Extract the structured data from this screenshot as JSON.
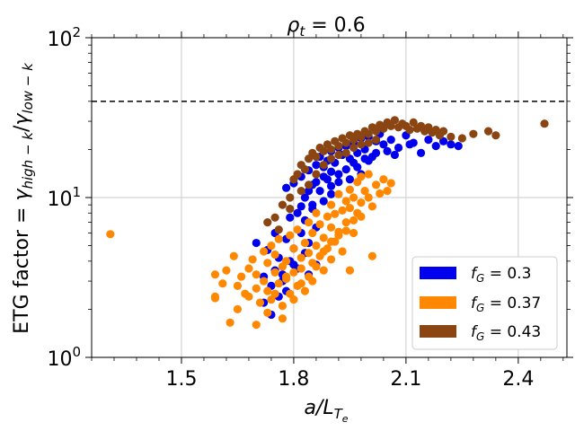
{
  "chart_data": {
    "type": "scatter",
    "title_main": "ρ",
    "title_sub": "t",
    "title_rest": " = 0.6",
    "ylabel_prefix": "ETG factor = ",
    "ylabel_g1": "γ",
    "ylabel_s1": "high − k",
    "ylabel_slash": "/",
    "ylabel_g2": "γ",
    "ylabel_s2": "low − k",
    "xlabel_main": "a/L",
    "xlabel_sub": "T",
    "xlabel_subsub": "e",
    "x_scale": "linear",
    "y_scale": "log",
    "xlim": [
      1.26,
      2.53
    ],
    "ylim": [
      1,
      100
    ],
    "x_ticks": [
      1.5,
      1.8,
      2.1,
      2.4
    ],
    "x_tick_labels": [
      "1.5",
      "1.8",
      "2.1",
      "2.4"
    ],
    "y_ticks": [
      1,
      10,
      100
    ],
    "y_tick_label_base": "10",
    "y_tick_label_exps": [
      "0",
      "1",
      "2"
    ],
    "grid": true,
    "threshold_line": {
      "y": 40,
      "style": "dashed"
    },
    "legend": {
      "placement": "bottom-right",
      "entries": [
        {
          "sym": "f",
          "sub": "G",
          "val": " = 0.3"
        },
        {
          "sym": "f",
          "sub": "G",
          "val": " = 0.37"
        },
        {
          "sym": "f",
          "sub": "G",
          "val": " = 0.43"
        }
      ]
    },
    "series": [
      {
        "color": "#0000ee",
        "points": [
          [
            1.78,
            11.5
          ],
          [
            1.8,
            12.3
          ],
          [
            1.82,
            13.5
          ],
          [
            1.84,
            14.8
          ],
          [
            1.85,
            12.0
          ],
          [
            1.86,
            16.0
          ],
          [
            1.87,
            18.0
          ],
          [
            1.88,
            15.5
          ],
          [
            1.89,
            17.0
          ],
          [
            1.9,
            19.5
          ],
          [
            1.91,
            16.5
          ],
          [
            1.92,
            20.5
          ],
          [
            1.93,
            18.5
          ],
          [
            1.94,
            21.0
          ],
          [
            1.95,
            17.5
          ],
          [
            1.96,
            22.0
          ],
          [
            1.97,
            19.0
          ],
          [
            1.98,
            23.5
          ],
          [
            1.99,
            20.0
          ],
          [
            2.0,
            24.0
          ],
          [
            2.01,
            18.0
          ],
          [
            2.02,
            22.5
          ],
          [
            2.03,
            25.0
          ],
          [
            2.04,
            21.5
          ],
          [
            2.05,
            19.5
          ],
          [
            2.06,
            23.0
          ],
          [
            2.08,
            20.5
          ],
          [
            2.1,
            24.5
          ],
          [
            2.12,
            22.0
          ],
          [
            2.14,
            19.0
          ],
          [
            2.16,
            23.0
          ],
          [
            2.18,
            21.0
          ],
          [
            2.2,
            22.5
          ],
          [
            2.22,
            21.5
          ],
          [
            2.24,
            21.0
          ],
          [
            1.83,
            10.0
          ],
          [
            1.85,
            9.0
          ],
          [
            1.87,
            11.0
          ],
          [
            1.89,
            13.0
          ],
          [
            1.9,
            14.5
          ],
          [
            1.92,
            12.5
          ],
          [
            1.94,
            15.0
          ],
          [
            1.96,
            16.5
          ],
          [
            1.98,
            14.0
          ],
          [
            2.0,
            17.0
          ],
          [
            1.81,
            8.0
          ],
          [
            1.83,
            7.2
          ],
          [
            1.85,
            8.5
          ],
          [
            1.86,
            6.5
          ],
          [
            1.88,
            9.5
          ],
          [
            1.9,
            10.5
          ],
          [
            1.82,
            6.0
          ],
          [
            1.84,
            5.2
          ],
          [
            1.8,
            4.8
          ],
          [
            1.78,
            5.5
          ],
          [
            1.76,
            4.2
          ],
          [
            1.75,
            3.5
          ],
          [
            1.77,
            3.0
          ],
          [
            1.8,
            3.8
          ],
          [
            1.83,
            4.5
          ],
          [
            1.72,
            3.2
          ],
          [
            1.74,
            2.8
          ],
          [
            1.76,
            2.4
          ],
          [
            1.78,
            2.6
          ],
          [
            1.72,
            2.2
          ],
          [
            1.74,
            1.85
          ],
          [
            1.77,
            3.3
          ],
          [
            1.79,
            4.0
          ],
          [
            1.81,
            3.6
          ],
          [
            1.84,
            3.3
          ],
          [
            1.86,
            3.8
          ],
          [
            1.7,
            5.2
          ],
          [
            1.73,
            4.7
          ],
          [
            1.75,
            6.0
          ],
          [
            1.79,
            7.5
          ],
          [
            1.82,
            8.8
          ],
          [
            1.84,
            11.0
          ],
          [
            1.86,
            12.5
          ],
          [
            1.88,
            13.5
          ],
          [
            1.9,
            11.8
          ],
          [
            1.92,
            14.0
          ],
          [
            1.95,
            13.0
          ],
          [
            1.97,
            15.5
          ],
          [
            1.99,
            17.5
          ],
          [
            2.02,
            19.0
          ],
          [
            2.07,
            18.5
          ],
          [
            2.11,
            21.5
          ]
        ]
      },
      {
        "color": "#ff8800",
        "points": [
          [
            1.31,
            5.9
          ],
          [
            1.59,
            3.3
          ],
          [
            1.59,
            2.4
          ],
          [
            1.59,
            2.35
          ],
          [
            1.61,
            2.9
          ],
          [
            1.62,
            3.5
          ],
          [
            1.63,
            1.65
          ],
          [
            1.64,
            4.3
          ],
          [
            1.65,
            2.0
          ],
          [
            1.65,
            2.8
          ],
          [
            1.66,
            3.2
          ],
          [
            1.67,
            2.5
          ],
          [
            1.68,
            3.6
          ],
          [
            1.68,
            2.4
          ],
          [
            1.69,
            4.1
          ],
          [
            1.7,
            2.7
          ],
          [
            1.7,
            3.3
          ],
          [
            1.71,
            2.2
          ],
          [
            1.72,
            4.6
          ],
          [
            1.72,
            3.0
          ],
          [
            1.73,
            2.6
          ],
          [
            1.73,
            3.9
          ],
          [
            1.74,
            5.0
          ],
          [
            1.74,
            2.3
          ],
          [
            1.75,
            3.4
          ],
          [
            1.75,
            4.4
          ],
          [
            1.76,
            2.9
          ],
          [
            1.76,
            5.5
          ],
          [
            1.77,
            3.7
          ],
          [
            1.77,
            2.1
          ],
          [
            1.78,
            4.0
          ],
          [
            1.78,
            3.1
          ],
          [
            1.79,
            5.8
          ],
          [
            1.79,
            2.5
          ],
          [
            1.8,
            4.8
          ],
          [
            1.8,
            3.4
          ],
          [
            1.81,
            2.8
          ],
          [
            1.81,
            6.3
          ],
          [
            1.82,
            4.2
          ],
          [
            1.82,
            3.6
          ],
          [
            1.83,
            5.2
          ],
          [
            1.83,
            2.6
          ],
          [
            1.84,
            7.0
          ],
          [
            1.84,
            4.5
          ],
          [
            1.85,
            3.9
          ],
          [
            1.85,
            6.0
          ],
          [
            1.86,
            5.0
          ],
          [
            1.86,
            8.0
          ],
          [
            1.87,
            4.3
          ],
          [
            1.87,
            6.8
          ],
          [
            1.88,
            5.6
          ],
          [
            1.88,
            3.5
          ],
          [
            1.89,
            7.6
          ],
          [
            1.89,
            4.8
          ],
          [
            1.9,
            6.5
          ],
          [
            1.9,
            9.0
          ],
          [
            1.91,
            5.3
          ],
          [
            1.91,
            7.9
          ],
          [
            1.92,
            6.1
          ],
          [
            1.92,
            10.5
          ],
          [
            1.93,
            8.3
          ],
          [
            1.93,
            4.6
          ],
          [
            1.94,
            9.5
          ],
          [
            1.94,
            7.0
          ],
          [
            1.95,
            11.2
          ],
          [
            1.95,
            8.6
          ],
          [
            1.96,
            6.0
          ],
          [
            1.96,
            10.0
          ],
          [
            1.97,
            12.5
          ],
          [
            1.97,
            8.0
          ],
          [
            1.98,
            9.3
          ],
          [
            1.98,
            13.5
          ],
          [
            1.99,
            11.0
          ],
          [
            2.0,
            10.0
          ],
          [
            2.0,
            14.0
          ],
          [
            2.01,
            8.8
          ],
          [
            2.02,
            12.0
          ],
          [
            2.03,
            10.6
          ],
          [
            2.04,
            13.0
          ],
          [
            2.05,
            11.0
          ],
          [
            2.06,
            12.3
          ],
          [
            2.01,
            4.3
          ],
          [
            1.95,
            3.5
          ],
          [
            1.9,
            4.1
          ],
          [
            1.85,
            3.0
          ],
          [
            1.8,
            2.3
          ],
          [
            1.77,
            1.75
          ],
          [
            1.73,
            1.9
          ],
          [
            1.7,
            1.6
          ],
          [
            1.75,
            2.5
          ],
          [
            1.78,
            3.2
          ],
          [
            1.82,
            2.9
          ],
          [
            1.84,
            3.2
          ],
          [
            1.86,
            3.7
          ],
          [
            1.88,
            4.6
          ],
          [
            1.9,
            5.3
          ],
          [
            1.92,
            5.8
          ],
          [
            1.94,
            6.2
          ],
          [
            1.96,
            7.2
          ],
          [
            1.98,
            7.6
          ]
        ]
      },
      {
        "color": "#8b4513",
        "points": [
          [
            1.73,
            7.0
          ],
          [
            1.75,
            7.5
          ],
          [
            1.77,
            9.0
          ],
          [
            1.79,
            10.0
          ],
          [
            1.8,
            13.0
          ],
          [
            1.81,
            14.0
          ],
          [
            1.82,
            16.0
          ],
          [
            1.83,
            15.0
          ],
          [
            1.84,
            17.5
          ],
          [
            1.85,
            19.0
          ],
          [
            1.86,
            18.0
          ],
          [
            1.87,
            20.5
          ],
          [
            1.88,
            19.5
          ],
          [
            1.89,
            21.5
          ],
          [
            1.9,
            20.0
          ],
          [
            1.91,
            22.5
          ],
          [
            1.92,
            21.0
          ],
          [
            1.93,
            23.5
          ],
          [
            1.94,
            22.0
          ],
          [
            1.95,
            24.5
          ],
          [
            1.96,
            23.0
          ],
          [
            1.97,
            25.0
          ],
          [
            1.98,
            24.0
          ],
          [
            1.99,
            26.0
          ],
          [
            2.0,
            25.0
          ],
          [
            2.01,
            27.5
          ],
          [
            2.02,
            26.0
          ],
          [
            2.03,
            28.5
          ],
          [
            2.04,
            27.0
          ],
          [
            2.05,
            29.5
          ],
          [
            2.06,
            28.0
          ],
          [
            2.07,
            30.5
          ],
          [
            2.08,
            27.5
          ],
          [
            2.09,
            29.0
          ],
          [
            2.1,
            28.0
          ],
          [
            2.11,
            26.5
          ],
          [
            2.12,
            29.5
          ],
          [
            2.13,
            27.0
          ],
          [
            2.14,
            28.0
          ],
          [
            2.15,
            26.0
          ],
          [
            2.16,
            27.5
          ],
          [
            2.17,
            25.5
          ],
          [
            2.18,
            26.5
          ],
          [
            2.19,
            24.5
          ],
          [
            2.2,
            26.0
          ],
          [
            2.22,
            24.0
          ],
          [
            2.25,
            23.5
          ],
          [
            2.28,
            25.0
          ],
          [
            2.32,
            26.0
          ],
          [
            2.34,
            24.5
          ],
          [
            2.47,
            29.0
          ],
          [
            1.86,
            14.0
          ],
          [
            1.88,
            16.0
          ],
          [
            1.9,
            17.5
          ],
          [
            1.92,
            18.5
          ],
          [
            1.94,
            19.0
          ],
          [
            1.96,
            20.5
          ],
          [
            1.98,
            21.5
          ],
          [
            2.0,
            22.0
          ],
          [
            2.02,
            23.0
          ],
          [
            1.84,
            12.0
          ],
          [
            1.82,
            11.0
          ],
          [
            1.79,
            8.5
          ],
          [
            1.76,
            6.3
          ]
        ]
      }
    ]
  }
}
